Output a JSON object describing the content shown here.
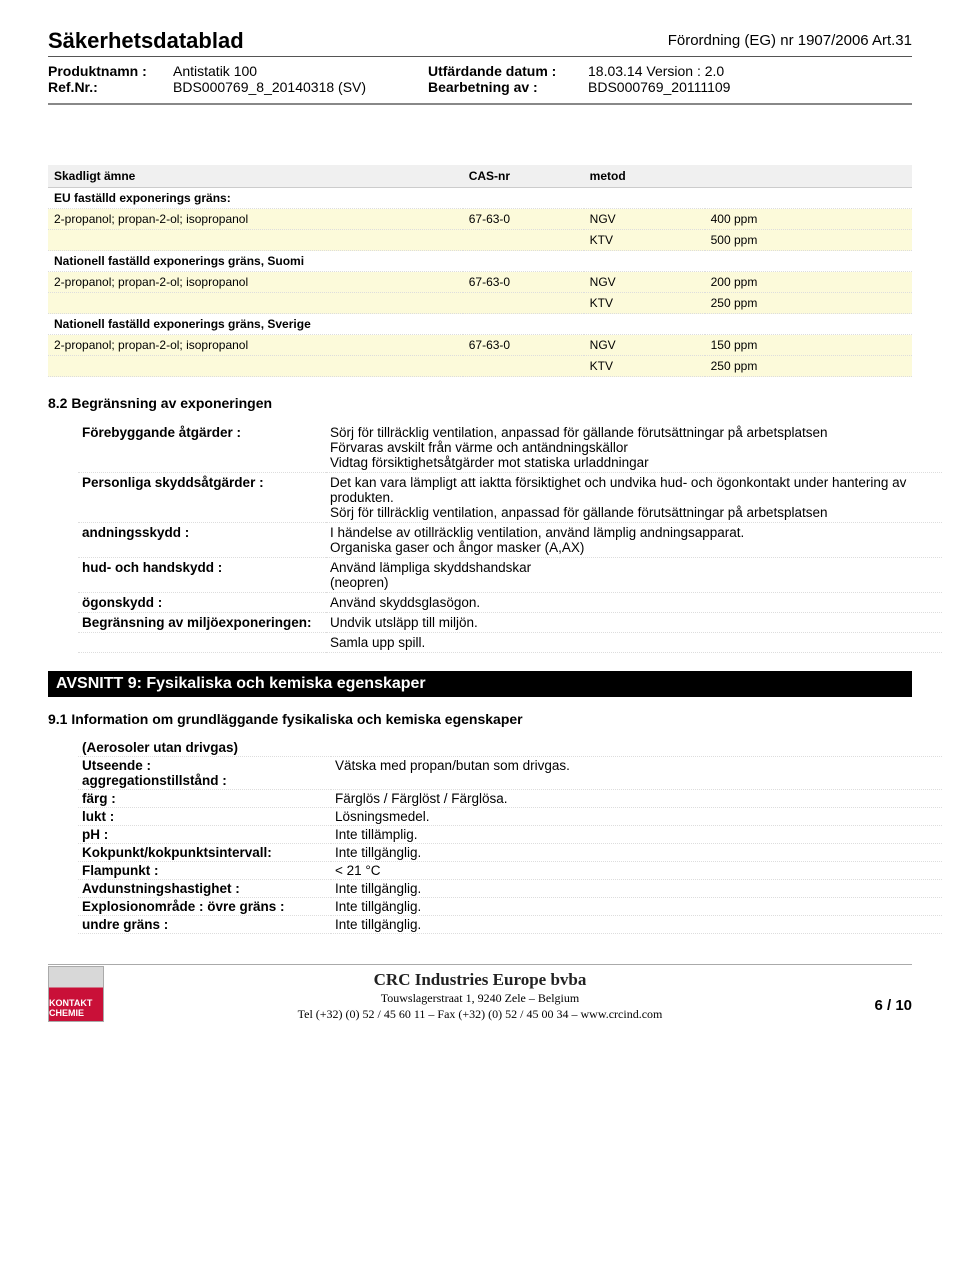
{
  "header": {
    "doc_title": "Säkerhetsdatablad",
    "regulation": "Förordning (EG) nr 1907/2006 Art.31",
    "product_label": "Produktnamn :",
    "product_value": "Antistatik 100",
    "ref_label": "Ref.Nr.:",
    "ref_value": "BDS000769_8_20140318 (SV)",
    "date_label": "Utfärdande datum :",
    "date_value": "18.03.14 Version : 2.0",
    "rev_label": "Bearbetning av :",
    "rev_value": "BDS000769_20111109"
  },
  "exp_table": {
    "headers": {
      "substance": "Skadligt ämne",
      "cas": "CAS-nr",
      "method": "metod",
      "value": ""
    },
    "groups": [
      {
        "title": "EU faställd exponerings gräns:",
        "rows": [
          {
            "substance": "2-propanol; propan-2-ol; isopropanol",
            "cas": "67-63-0",
            "method": "NGV",
            "value": "400 ppm"
          },
          {
            "substance": "",
            "cas": "",
            "method": "KTV",
            "value": "500 ppm"
          }
        ]
      },
      {
        "title": "Nationell faställd exponerings gräns, Suomi",
        "rows": [
          {
            "substance": "2-propanol; propan-2-ol; isopropanol",
            "cas": "67-63-0",
            "method": "NGV",
            "value": "200 ppm"
          },
          {
            "substance": "",
            "cas": "",
            "method": "KTV",
            "value": "250 ppm"
          }
        ]
      },
      {
        "title": "Nationell faställd exponerings gräns, Sverige",
        "rows": [
          {
            "substance": "2-propanol; propan-2-ol; isopropanol",
            "cas": "67-63-0",
            "method": "NGV",
            "value": "150 ppm"
          },
          {
            "substance": "",
            "cas": "",
            "method": "KTV",
            "value": "250 ppm"
          }
        ]
      }
    ]
  },
  "section_82_title": "8.2 Begränsning av exponeringen",
  "measures": [
    {
      "k": "Förebyggande åtgärder :",
      "v": "Sörj för tillräcklig ventilation, anpassad för gällande förutsättningar på arbetsplatsen\nFörvaras avskilt från värme och antändningskällor\nVidtag försiktighetsåtgärder mot statiska urladdningar"
    },
    {
      "k": "Personliga skyddsåtgärder :",
      "v": "Det kan vara lämpligt att iaktta försiktighet och undvika hud- och ögonkontakt under hantering av produkten.\nSörj för tillräcklig ventilation, anpassad för gällande förutsättningar på arbetsplatsen"
    },
    {
      "k": "andningsskydd :",
      "v": "I händelse av otillräcklig ventilation, använd lämplig andningsapparat.\nOrganiska gaser och ångor masker (A,AX)"
    },
    {
      "k": "hud- och handskydd :",
      "v": "Använd lämpliga skyddshandskar\n(neopren)"
    },
    {
      "k": "ögonskydd :",
      "v": "Använd skyddsglasögon."
    },
    {
      "k": "Begränsning av miljöexponeringen:",
      "v": "Undvik utsläpp till miljön."
    },
    {
      "k": "",
      "v": "Samla upp spill."
    }
  ],
  "section9_bar": "AVSNITT 9: Fysikaliska och kemiska egenskaper",
  "section_91_title": "9.1 Information om grundläggande fysikaliska och kemiska egenskaper",
  "aerosol_note": "(Aerosoler utan drivgas)",
  "props": [
    {
      "k": "Utseende :\naggregationstillstånd :",
      "v": "Vätska med propan/butan som drivgas."
    },
    {
      "k": "färg :",
      "v": "Färglös / Färglöst / Färglösa."
    },
    {
      "k": "lukt :",
      "v": "Lösningsmedel."
    },
    {
      "k": "pH :",
      "v": "Inte tillämplig."
    },
    {
      "k": "Kokpunkt/kokpunktsintervall:",
      "v": "Inte tillgänglig."
    },
    {
      "k": "Flampunkt :",
      "v": "< 21 °C"
    },
    {
      "k": "Avdunstningshastighet :",
      "v": "Inte tillgänglig."
    },
    {
      "k": "Explosionområde : övre gräns :",
      "v": "Inte tillgänglig."
    },
    {
      "k": "undre gräns :",
      "v": "Inte tillgänglig."
    }
  ],
  "footer": {
    "logo_text": "KONTAKT CHEMIE",
    "company": "CRC Industries Europe bvba",
    "address": "Touwslagerstraat 1, 9240 Zele – Belgium",
    "contact": "Tel (+32) (0) 52 / 45 60 11 – Fax (+32) (0) 52 / 45 00 34 – www.crcind.com",
    "page": "6 / 10"
  }
}
